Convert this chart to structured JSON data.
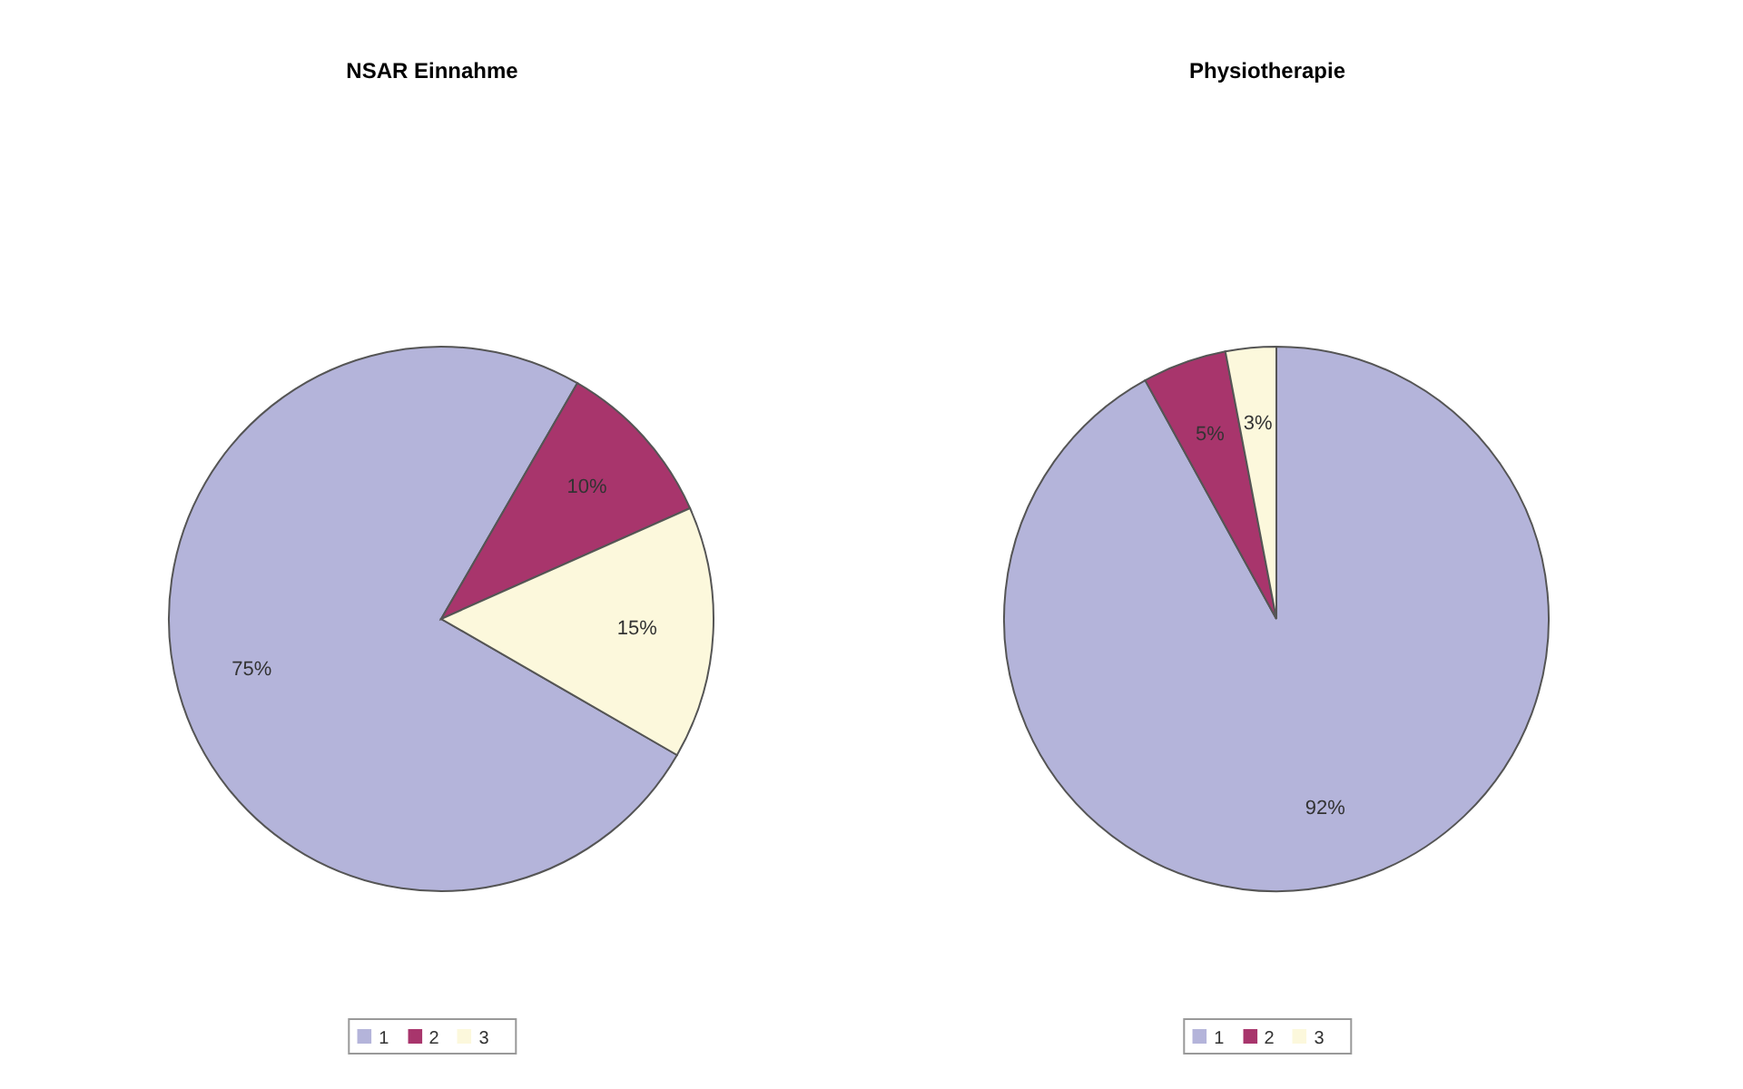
{
  "chart_data": [
    {
      "type": "pie",
      "title": "NSAR Einnahme",
      "categories": [
        "1",
        "2",
        "3"
      ],
      "values": [
        75,
        10,
        15
      ],
      "colors": [
        "#b4b4da",
        "#a8356c",
        "#fcf8dc"
      ],
      "value_labels": [
        "75%",
        "10%",
        "15%"
      ],
      "legend": "bottom"
    },
    {
      "type": "pie",
      "title": "Physiotherapie",
      "categories": [
        "1",
        "2",
        "3"
      ],
      "values": [
        92,
        5,
        3
      ],
      "colors": [
        "#b4b4da",
        "#a8356c",
        "#fcf8dc"
      ],
      "value_labels": [
        "92%",
        "5%",
        "3%"
      ],
      "legend": "bottom"
    }
  ]
}
